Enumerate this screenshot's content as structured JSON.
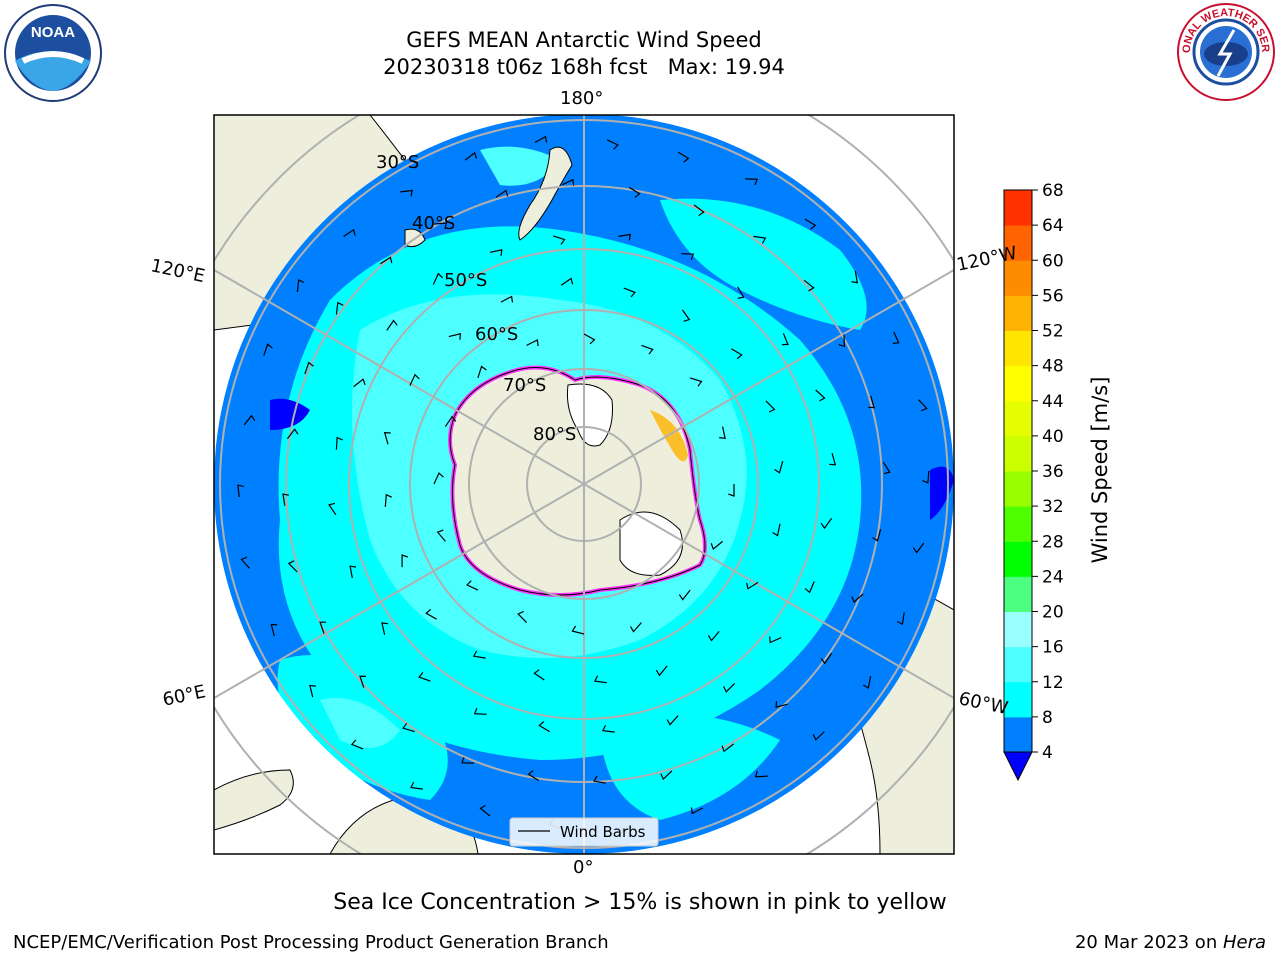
{
  "figure": {
    "title_line1": "GEFS MEAN Antarctic Wind Speed",
    "title_line2": "20230318 t06z 168h fcst   Max: 19.94",
    "sea_ice_note": "Sea Ice Concentration > 15% is shown in pink to yellow",
    "footer_left": "NCEP/EMC/Verification Post Processing Product Generation Branch",
    "footer_date": "20 Mar 2023 on ",
    "footer_machine": "Hera",
    "logo_left": "NOAA",
    "logo_right": "NATIONAL WEATHER SERVICE",
    "legend_label": "Wind Barbs"
  },
  "map": {
    "projection": "south polar stereographic",
    "latitude_labels": [
      "30°S",
      "40°S",
      "50°S",
      "60°S",
      "70°S",
      "80°S"
    ],
    "longitude_labels": {
      "top": "180°",
      "bottom": "0°",
      "upper_left": "120°E",
      "upper_right": "120°W",
      "lower_left": "60°E",
      "lower_right": "60°W"
    },
    "colors": {
      "ocean_background": "#0080ff",
      "land": "#eeeedc",
      "ice_shelf": "#ffffff",
      "wind_8_12": "#00ffff",
      "wind_12_16": "#4dffff",
      "wind_4_8": "#0080ff",
      "sea_ice_edge": "#ff33ff",
      "gridline": "#b0b0b0"
    }
  },
  "chart_data": {
    "type": "heatmap",
    "title": "GEFS MEAN Antarctic Wind Speed",
    "subtitle": "20230318 t06z 168h fcst   Max: 19.94",
    "variable": "Wind Speed",
    "max_value": 19.94,
    "colorbar": {
      "label": "Wind Speed [m/s]",
      "ticks": [
        4,
        8,
        12,
        16,
        20,
        24,
        28,
        32,
        36,
        40,
        44,
        48,
        52,
        56,
        60,
        64,
        68
      ],
      "colors": [
        "#0080ff",
        "#00ffff",
        "#4dffff",
        "#99ffff",
        "#4dff80",
        "#00ff00",
        "#4dff00",
        "#99ff00",
        "#ccff00",
        "#e6ff00",
        "#ffff00",
        "#ffe600",
        "#ffb300",
        "#ff8c00",
        "#ff6400",
        "#ff3200",
        "#ff0000"
      ],
      "under_color": "#0000ff",
      "extend": "min"
    },
    "overlays": [
      "Wind Barbs",
      "Sea Ice Concentration > 15%"
    ]
  }
}
